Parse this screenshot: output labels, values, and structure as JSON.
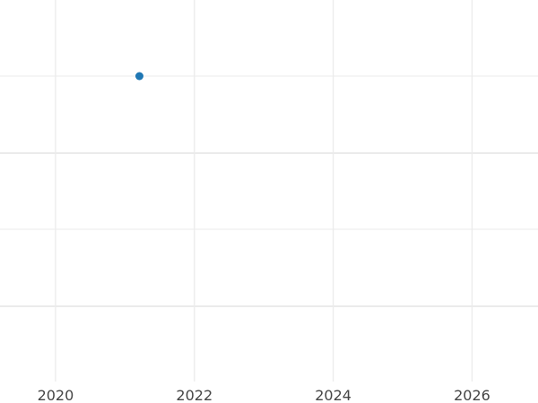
{
  "chart_data": {
    "type": "scatter",
    "title": "",
    "xlabel": "",
    "ylabel": "",
    "x_ticks": [
      "2020",
      "2022",
      "2024",
      "2026"
    ],
    "xlim": [
      2019.2,
      2026.95
    ],
    "grid": true,
    "legend": "none",
    "series": [
      {
        "x": [
          "2021-03"
        ],
        "color": "#1f77b4"
      }
    ],
    "colors": {
      "grid": "#ebebeb",
      "tick_text": "#444444"
    }
  }
}
